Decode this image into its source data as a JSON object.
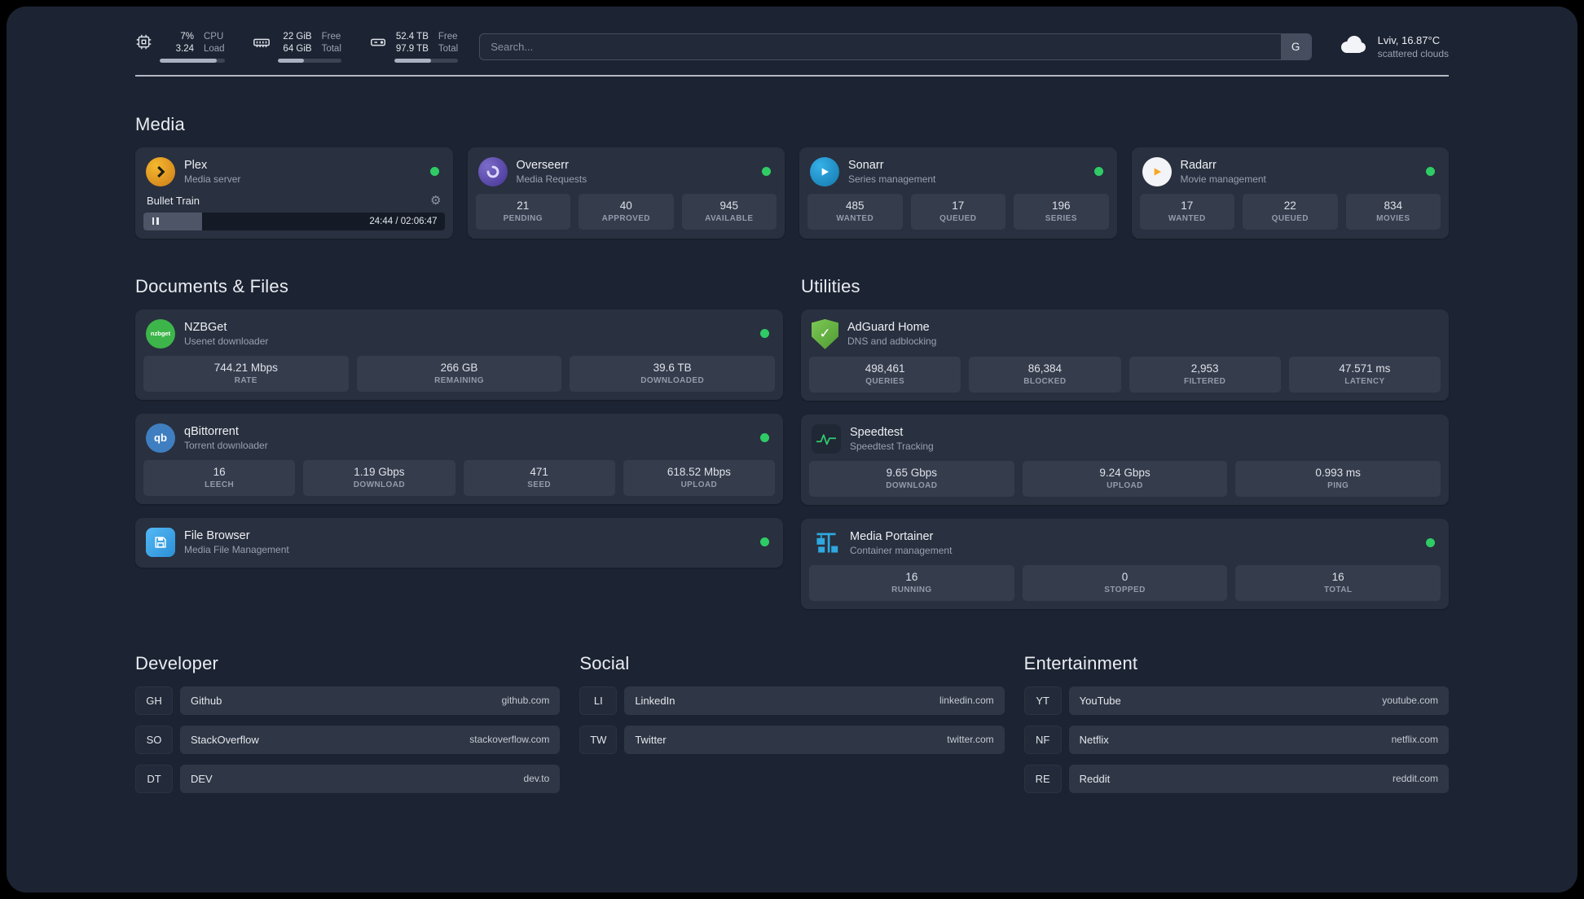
{
  "topbar": {
    "resources": [
      {
        "icon": "cpu-icon",
        "value_top": "7%",
        "value_bottom": "3.24",
        "label_top": "CPU",
        "label_bottom": "Load",
        "bar_percent": 88
      },
      {
        "icon": "ram-icon",
        "value_top": "22 GiB",
        "value_bottom": "64 GiB",
        "label_top": "Free",
        "label_bottom": "Total",
        "bar_percent": 42
      },
      {
        "icon": "disk-icon",
        "value_top": "52.4 TB",
        "value_bottom": "97.9 TB",
        "label_top": "Free",
        "label_bottom": "Total",
        "bar_percent": 58
      }
    ],
    "search": {
      "placeholder": "Search...",
      "provider_button": "G"
    },
    "weather": {
      "icon": "cloud-icon",
      "location": "Lviv, 16.87°C",
      "condition": "scattered clouds"
    }
  },
  "sections": {
    "media": {
      "title": "Media",
      "plex": {
        "icon": "plex-icon",
        "name": "Plex",
        "subtitle": "Media server",
        "status": "online",
        "now_playing": {
          "track": "Bullet Train",
          "time": "24:44 / 02:06:47",
          "progress_percent": 19.5
        }
      },
      "overseerr": {
        "icon": "overseerr-icon",
        "name": "Overseerr",
        "subtitle": "Media Requests",
        "status": "online",
        "stats": [
          {
            "value": "21",
            "label": "PENDING"
          },
          {
            "value": "40",
            "label": "APPROVED"
          },
          {
            "value": "945",
            "label": "AVAILABLE"
          }
        ]
      },
      "sonarr": {
        "icon": "sonarr-icon",
        "name": "Sonarr",
        "subtitle": "Series management",
        "status": "online",
        "stats": [
          {
            "value": "485",
            "label": "WANTED"
          },
          {
            "value": "17",
            "label": "QUEUED"
          },
          {
            "value": "196",
            "label": "SERIES"
          }
        ]
      },
      "radarr": {
        "icon": "radarr-icon",
        "name": "Radarr",
        "subtitle": "Movie management",
        "status": "online",
        "stats": [
          {
            "value": "17",
            "label": "WANTED"
          },
          {
            "value": "22",
            "label": "QUEUED"
          },
          {
            "value": "834",
            "label": "MOVIES"
          }
        ]
      }
    },
    "documents": {
      "title": "Documents & Files",
      "nzbget": {
        "icon": "nzbget-icon",
        "name": "NZBGet",
        "subtitle": "Usenet downloader",
        "status": "online",
        "stats": [
          {
            "value": "744.21 Mbps",
            "label": "RATE"
          },
          {
            "value": "266 GB",
            "label": "REMAINING"
          },
          {
            "value": "39.6 TB",
            "label": "DOWNLOADED"
          }
        ]
      },
      "qbittorrent": {
        "icon": "qbittorrent-icon",
        "name": "qBittorrent",
        "subtitle": "Torrent downloader",
        "status": "online",
        "stats": [
          {
            "value": "16",
            "label": "LEECH"
          },
          {
            "value": "1.19 Gbps",
            "label": "DOWNLOAD"
          },
          {
            "value": "471",
            "label": "SEED"
          },
          {
            "value": "618.52 Mbps",
            "label": "UPLOAD"
          }
        ]
      },
      "filebrowser": {
        "icon": "filebrowser-icon",
        "name": "File Browser",
        "subtitle": "Media File Management",
        "status": "online"
      }
    },
    "utilities": {
      "title": "Utilities",
      "adguard": {
        "icon": "adguard-icon",
        "name": "AdGuard Home",
        "subtitle": "DNS and adblocking",
        "stats": [
          {
            "value": "498,461",
            "label": "QUERIES"
          },
          {
            "value": "86,384",
            "label": "BLOCKED"
          },
          {
            "value": "2,953",
            "label": "FILTERED"
          },
          {
            "value": "47.571 ms",
            "label": "LATENCY"
          }
        ]
      },
      "speedtest": {
        "icon": "speedtest-icon",
        "name": "Speedtest",
        "subtitle": "Speedtest Tracking",
        "stats": [
          {
            "value": "9.65 Gbps",
            "label": "DOWNLOAD"
          },
          {
            "value": "9.24 Gbps",
            "label": "UPLOAD"
          },
          {
            "value": "0.993 ms",
            "label": "PING"
          }
        ]
      },
      "portainer": {
        "icon": "portainer-icon",
        "name": "Media Portainer",
        "subtitle": "Container management",
        "status": "online",
        "stats": [
          {
            "value": "16",
            "label": "RUNNING"
          },
          {
            "value": "0",
            "label": "STOPPED"
          },
          {
            "value": "16",
            "label": "TOTAL"
          }
        ]
      }
    },
    "bookmarks": [
      {
        "title": "Developer",
        "items": [
          {
            "abbr": "GH",
            "name": "Github",
            "domain": "github.com"
          },
          {
            "abbr": "SO",
            "name": "StackOverflow",
            "domain": "stackoverflow.com"
          },
          {
            "abbr": "DT",
            "name": "DEV",
            "domain": "dev.to"
          }
        ]
      },
      {
        "title": "Social",
        "items": [
          {
            "abbr": "LI",
            "name": "LinkedIn",
            "domain": "linkedin.com"
          },
          {
            "abbr": "TW",
            "name": "Twitter",
            "domain": "twitter.com"
          }
        ]
      },
      {
        "title": "Entertainment",
        "items": [
          {
            "abbr": "YT",
            "name": "YouTube",
            "domain": "youtube.com"
          },
          {
            "abbr": "NF",
            "name": "Netflix",
            "domain": "netflix.com"
          },
          {
            "abbr": "RE",
            "name": "Reddit",
            "domain": "reddit.com"
          }
        ]
      }
    ]
  },
  "colors": {
    "status_green": "#2fcc66",
    "background": "#1c2433",
    "card": "#29303f"
  }
}
